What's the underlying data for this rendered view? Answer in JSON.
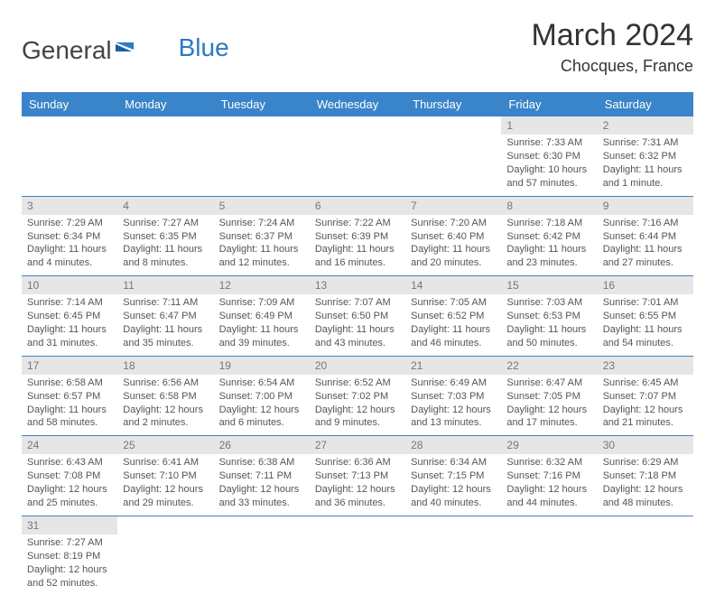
{
  "logo": {
    "text1": "General",
    "text2": "Blue"
  },
  "title": "March 2024",
  "location": "Chocques, France",
  "headers": [
    "Sunday",
    "Monday",
    "Tuesday",
    "Wednesday",
    "Thursday",
    "Friday",
    "Saturday"
  ],
  "colors": {
    "header_bg": "#3a84c9",
    "header_fg": "#ffffff",
    "daynum_bg": "#e6e6e6",
    "daynum_fg": "#777777",
    "border": "#3a84c9",
    "text": "#555555",
    "logo_blue": "#2d79c7"
  },
  "weeks": [
    [
      {
        "n": "",
        "lines": []
      },
      {
        "n": "",
        "lines": []
      },
      {
        "n": "",
        "lines": []
      },
      {
        "n": "",
        "lines": []
      },
      {
        "n": "",
        "lines": []
      },
      {
        "n": "1",
        "lines": [
          "Sunrise: 7:33 AM",
          "Sunset: 6:30 PM",
          "Daylight: 10 hours and 57 minutes."
        ]
      },
      {
        "n": "2",
        "lines": [
          "Sunrise: 7:31 AM",
          "Sunset: 6:32 PM",
          "Daylight: 11 hours and 1 minute."
        ]
      }
    ],
    [
      {
        "n": "3",
        "lines": [
          "Sunrise: 7:29 AM",
          "Sunset: 6:34 PM",
          "Daylight: 11 hours and 4 minutes."
        ]
      },
      {
        "n": "4",
        "lines": [
          "Sunrise: 7:27 AM",
          "Sunset: 6:35 PM",
          "Daylight: 11 hours and 8 minutes."
        ]
      },
      {
        "n": "5",
        "lines": [
          "Sunrise: 7:24 AM",
          "Sunset: 6:37 PM",
          "Daylight: 11 hours and 12 minutes."
        ]
      },
      {
        "n": "6",
        "lines": [
          "Sunrise: 7:22 AM",
          "Sunset: 6:39 PM",
          "Daylight: 11 hours and 16 minutes."
        ]
      },
      {
        "n": "7",
        "lines": [
          "Sunrise: 7:20 AM",
          "Sunset: 6:40 PM",
          "Daylight: 11 hours and 20 minutes."
        ]
      },
      {
        "n": "8",
        "lines": [
          "Sunrise: 7:18 AM",
          "Sunset: 6:42 PM",
          "Daylight: 11 hours and 23 minutes."
        ]
      },
      {
        "n": "9",
        "lines": [
          "Sunrise: 7:16 AM",
          "Sunset: 6:44 PM",
          "Daylight: 11 hours and 27 minutes."
        ]
      }
    ],
    [
      {
        "n": "10",
        "lines": [
          "Sunrise: 7:14 AM",
          "Sunset: 6:45 PM",
          "Daylight: 11 hours and 31 minutes."
        ]
      },
      {
        "n": "11",
        "lines": [
          "Sunrise: 7:11 AM",
          "Sunset: 6:47 PM",
          "Daylight: 11 hours and 35 minutes."
        ]
      },
      {
        "n": "12",
        "lines": [
          "Sunrise: 7:09 AM",
          "Sunset: 6:49 PM",
          "Daylight: 11 hours and 39 minutes."
        ]
      },
      {
        "n": "13",
        "lines": [
          "Sunrise: 7:07 AM",
          "Sunset: 6:50 PM",
          "Daylight: 11 hours and 43 minutes."
        ]
      },
      {
        "n": "14",
        "lines": [
          "Sunrise: 7:05 AM",
          "Sunset: 6:52 PM",
          "Daylight: 11 hours and 46 minutes."
        ]
      },
      {
        "n": "15",
        "lines": [
          "Sunrise: 7:03 AM",
          "Sunset: 6:53 PM",
          "Daylight: 11 hours and 50 minutes."
        ]
      },
      {
        "n": "16",
        "lines": [
          "Sunrise: 7:01 AM",
          "Sunset: 6:55 PM",
          "Daylight: 11 hours and 54 minutes."
        ]
      }
    ],
    [
      {
        "n": "17",
        "lines": [
          "Sunrise: 6:58 AM",
          "Sunset: 6:57 PM",
          "Daylight: 11 hours and 58 minutes."
        ]
      },
      {
        "n": "18",
        "lines": [
          "Sunrise: 6:56 AM",
          "Sunset: 6:58 PM",
          "Daylight: 12 hours and 2 minutes."
        ]
      },
      {
        "n": "19",
        "lines": [
          "Sunrise: 6:54 AM",
          "Sunset: 7:00 PM",
          "Daylight: 12 hours and 6 minutes."
        ]
      },
      {
        "n": "20",
        "lines": [
          "Sunrise: 6:52 AM",
          "Sunset: 7:02 PM",
          "Daylight: 12 hours and 9 minutes."
        ]
      },
      {
        "n": "21",
        "lines": [
          "Sunrise: 6:49 AM",
          "Sunset: 7:03 PM",
          "Daylight: 12 hours and 13 minutes."
        ]
      },
      {
        "n": "22",
        "lines": [
          "Sunrise: 6:47 AM",
          "Sunset: 7:05 PM",
          "Daylight: 12 hours and 17 minutes."
        ]
      },
      {
        "n": "23",
        "lines": [
          "Sunrise: 6:45 AM",
          "Sunset: 7:07 PM",
          "Daylight: 12 hours and 21 minutes."
        ]
      }
    ],
    [
      {
        "n": "24",
        "lines": [
          "Sunrise: 6:43 AM",
          "Sunset: 7:08 PM",
          "Daylight: 12 hours and 25 minutes."
        ]
      },
      {
        "n": "25",
        "lines": [
          "Sunrise: 6:41 AM",
          "Sunset: 7:10 PM",
          "Daylight: 12 hours and 29 minutes."
        ]
      },
      {
        "n": "26",
        "lines": [
          "Sunrise: 6:38 AM",
          "Sunset: 7:11 PM",
          "Daylight: 12 hours and 33 minutes."
        ]
      },
      {
        "n": "27",
        "lines": [
          "Sunrise: 6:36 AM",
          "Sunset: 7:13 PM",
          "Daylight: 12 hours and 36 minutes."
        ]
      },
      {
        "n": "28",
        "lines": [
          "Sunrise: 6:34 AM",
          "Sunset: 7:15 PM",
          "Daylight: 12 hours and 40 minutes."
        ]
      },
      {
        "n": "29",
        "lines": [
          "Sunrise: 6:32 AM",
          "Sunset: 7:16 PM",
          "Daylight: 12 hours and 44 minutes."
        ]
      },
      {
        "n": "30",
        "lines": [
          "Sunrise: 6:29 AM",
          "Sunset: 7:18 PM",
          "Daylight: 12 hours and 48 minutes."
        ]
      }
    ],
    [
      {
        "n": "31",
        "lines": [
          "Sunrise: 7:27 AM",
          "Sunset: 8:19 PM",
          "Daylight: 12 hours and 52 minutes."
        ]
      },
      {
        "n": "",
        "lines": []
      },
      {
        "n": "",
        "lines": []
      },
      {
        "n": "",
        "lines": []
      },
      {
        "n": "",
        "lines": []
      },
      {
        "n": "",
        "lines": []
      },
      {
        "n": "",
        "lines": []
      }
    ]
  ]
}
